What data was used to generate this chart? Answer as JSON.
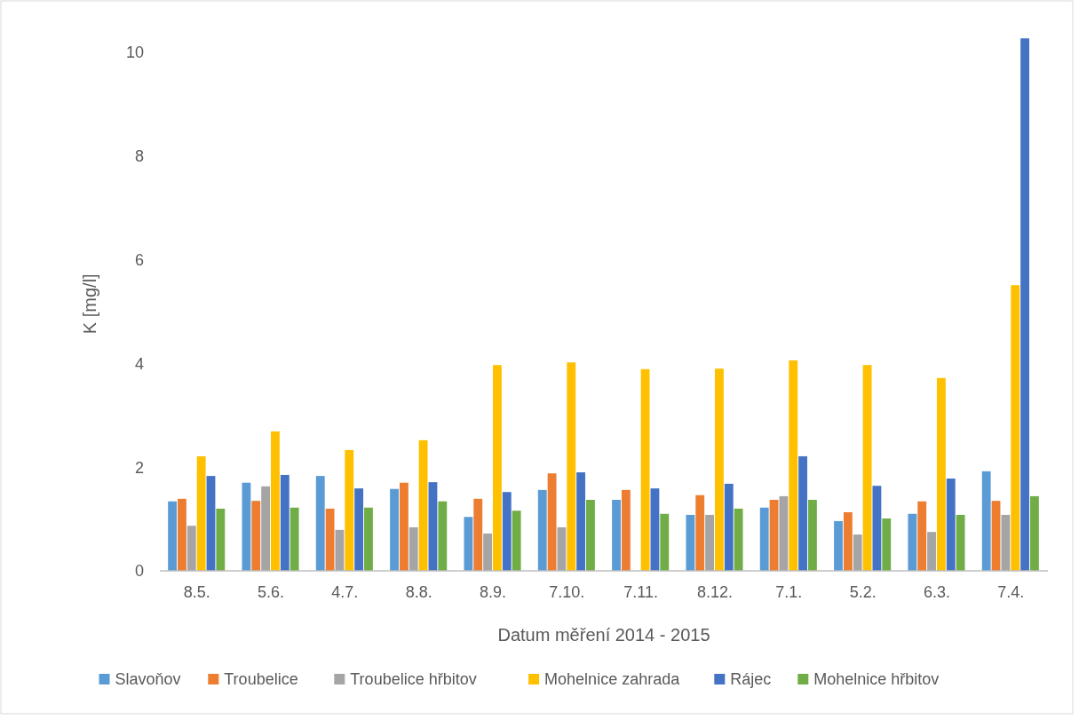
{
  "chart_data": {
    "type": "bar",
    "xlabel": "Datum měření 2014 - 2015",
    "ylabel": "K [mg/l]",
    "categories": [
      "8.5.",
      "5.6.",
      "4.7.",
      "8.8.",
      "8.9.",
      "7.10.",
      "7.11.",
      "8.12.",
      "7.1.",
      "5.2.",
      "6.3.",
      "7.4."
    ],
    "series": [
      {
        "name": "Slavoňov",
        "color": "#5b9bd5",
        "values": [
          1.34,
          1.7,
          1.83,
          1.58,
          1.04,
          1.56,
          1.37,
          1.08,
          1.22,
          0.96,
          1.1,
          1.92
        ]
      },
      {
        "name": "Troubelice",
        "color": "#ed7d31",
        "values": [
          1.39,
          1.35,
          1.2,
          1.7,
          1.39,
          1.88,
          1.56,
          1.46,
          1.37,
          1.13,
          1.34,
          1.35
        ]
      },
      {
        "name": "Troubelice hřbitov",
        "color": "#a5a5a5",
        "values": [
          0.87,
          1.63,
          0.79,
          0.84,
          0.72,
          0.84,
          null,
          1.08,
          1.44,
          0.7,
          0.75,
          1.08
        ]
      },
      {
        "name": "Mohelnice zahrada",
        "color": "#ffc000",
        "values": [
          2.21,
          2.69,
          2.33,
          2.52,
          3.97,
          4.02,
          3.89,
          3.9,
          4.06,
          3.97,
          3.72,
          5.51
        ]
      },
      {
        "name": "Rájec",
        "color": "#4472c4",
        "values": [
          1.83,
          1.85,
          1.59,
          1.71,
          1.52,
          1.9,
          1.59,
          1.68,
          2.21,
          1.64,
          1.78,
          10.27
        ]
      },
      {
        "name": "Mohelnice hřbitov",
        "color": "#70ad47",
        "values": [
          1.2,
          1.22,
          1.22,
          1.34,
          1.16,
          1.37,
          1.1,
          1.2,
          1.37,
          1.01,
          1.08,
          1.44
        ]
      }
    ],
    "ylim": [
      0,
      10.3
    ],
    "yticks": [
      0,
      2,
      4,
      6,
      8,
      10
    ],
    "grid": false,
    "legend": "bottom"
  }
}
